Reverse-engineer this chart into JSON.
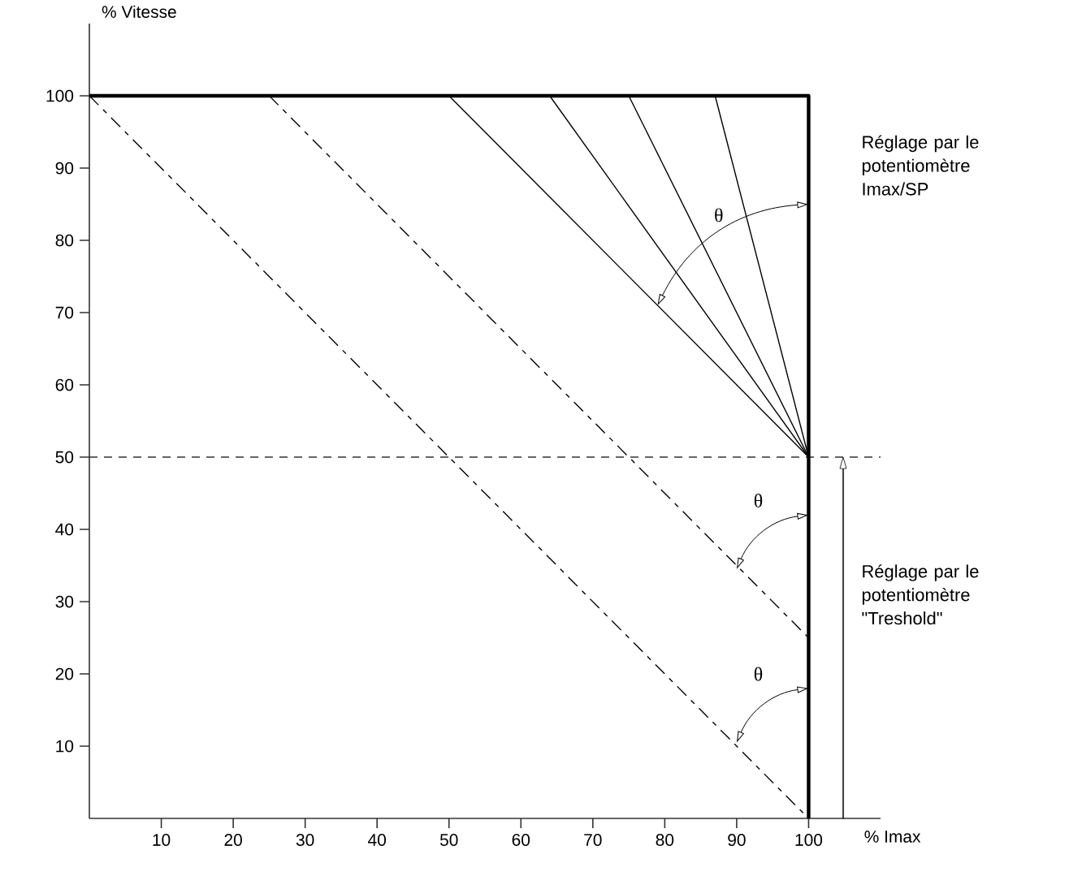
{
  "chart_data": {
    "type": "line",
    "xlabel": "% Imax",
    "ylabel": "% Vitesse",
    "xlim": [
      0,
      110
    ],
    "ylim": [
      0,
      110
    ],
    "xticks": [
      10,
      20,
      30,
      40,
      50,
      60,
      70,
      80,
      90,
      100
    ],
    "yticks": [
      10,
      20,
      30,
      40,
      50,
      60,
      70,
      80,
      90,
      100
    ],
    "grid": false,
    "marker": "none",
    "series": [
      {
        "color": "#000000",
        "line_style": "solid",
        "x": [
          0,
          100,
          100
        ],
        "values": [
          100,
          100,
          0
        ]
      },
      {
        "color": "#000000",
        "line_style": "dashed",
        "x": [
          0,
          100
        ],
        "values": [
          100,
          0
        ]
      },
      {
        "color": "#000000",
        "line_style": "dashed",
        "x": [
          25,
          100
        ],
        "values": [
          100,
          25
        ]
      },
      {
        "color": "#000000",
        "line_style": "solid",
        "x": [
          50,
          100
        ],
        "values": [
          100,
          50
        ]
      },
      {
        "color": "#000000",
        "line_style": "solid",
        "x": [
          64,
          100
        ],
        "values": [
          100,
          50
        ]
      },
      {
        "color": "#000000",
        "line_style": "solid",
        "x": [
          75,
          100
        ],
        "values": [
          100,
          50
        ]
      },
      {
        "color": "#000000",
        "line_style": "solid",
        "x": [
          87,
          100
        ],
        "values": [
          100,
          50
        ]
      }
    ],
    "ref_lines": [
      {
        "axis": "y",
        "value": 50,
        "color": "#333333",
        "line_style": "dashed"
      }
    ],
    "annotations": [
      "θ",
      "θ",
      "θ",
      "Réglage par le potentiomètre Imax/SP",
      "Réglage par le potentiomètre \"Treshold\""
    ]
  }
}
